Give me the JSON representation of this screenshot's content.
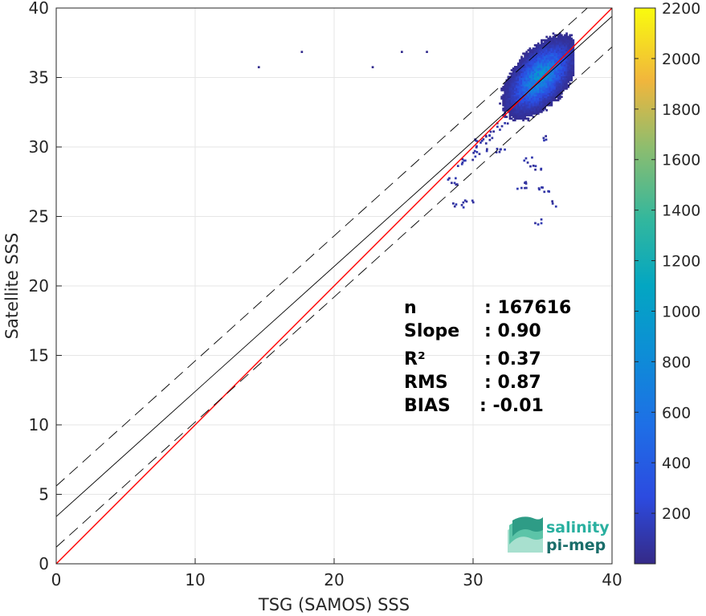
{
  "chart_data": {
    "type": "heatmap",
    "title": "",
    "xlabel": "TSG (SAMOS) SSS",
    "ylabel": "Satellite SSS",
    "xlim": [
      0,
      40
    ],
    "ylim": [
      0,
      40
    ],
    "xticks": [
      "0",
      "10",
      "20",
      "30",
      "40"
    ],
    "yticks": [
      "0",
      "5",
      "10",
      "15",
      "20",
      "25",
      "30",
      "35",
      "40"
    ],
    "grid": true,
    "colorbar": {
      "range": [
        0,
        2200
      ],
      "ticks": [
        "200",
        "400",
        "600",
        "800",
        "1000",
        "1200",
        "1400",
        "1600",
        "1800",
        "2000",
        "2200"
      ],
      "colormap": "parula"
    },
    "lines": [
      {
        "type": "identity",
        "slope": 1.0,
        "intercept": 0.0,
        "color": "#ff0000"
      },
      {
        "type": "regression",
        "slope": 0.9,
        "intercept": 3.4,
        "color": "#000000"
      },
      {
        "type": "regression-upper",
        "slope": 0.9,
        "intercept": 5.6,
        "color": "#000000",
        "dash": true
      },
      {
        "type": "regression-lower",
        "slope": 0.9,
        "intercept": 1.2,
        "color": "#000000",
        "dash": true
      }
    ],
    "density": {
      "center": [
        34.8,
        35.0
      ],
      "peak_count": 2200,
      "spread_x": 1.1,
      "spread_y": 1.2,
      "tail_points": [
        [
          29.5,
          29.0
        ],
        [
          30.5,
          30.3
        ],
        [
          31.5,
          31.0
        ],
        [
          32.0,
          31.6
        ],
        [
          30.0,
          29.4
        ],
        [
          29.0,
          28.8
        ],
        [
          31.0,
          30.6
        ],
        [
          28.5,
          27.5
        ],
        [
          29.5,
          26.2
        ],
        [
          28.8,
          25.8
        ],
        [
          34.5,
          28.5
        ],
        [
          35.0,
          26.8
        ],
        [
          35.5,
          25.8
        ],
        [
          34.8,
          24.5
        ],
        [
          33.5,
          27.2
        ],
        [
          34.0,
          29.0
        ],
        [
          35.2,
          30.5
        ],
        [
          30.5,
          29.8
        ],
        [
          31.8,
          29.8
        ]
      ],
      "outliers": [
        [
          14.5,
          35.7
        ],
        [
          17.6,
          36.8
        ],
        [
          22.7,
          35.7
        ],
        [
          24.8,
          36.8
        ],
        [
          26.6,
          36.8
        ]
      ]
    },
    "stats": [
      {
        "label": "n",
        "value": ": 167616"
      },
      {
        "label": "Slope",
        "value": ": 0.90"
      },
      {
        "label": "R²",
        "value": ": 0.37"
      },
      {
        "label": "RMS",
        "value": ": 0.87"
      },
      {
        "label": "BIAS",
        "value": ": -0.01"
      }
    ]
  },
  "logo": {
    "line1": "salinity",
    "line2": "pi-mep",
    "color1": "#2ab0a0",
    "color2": "#1a6d6a"
  }
}
